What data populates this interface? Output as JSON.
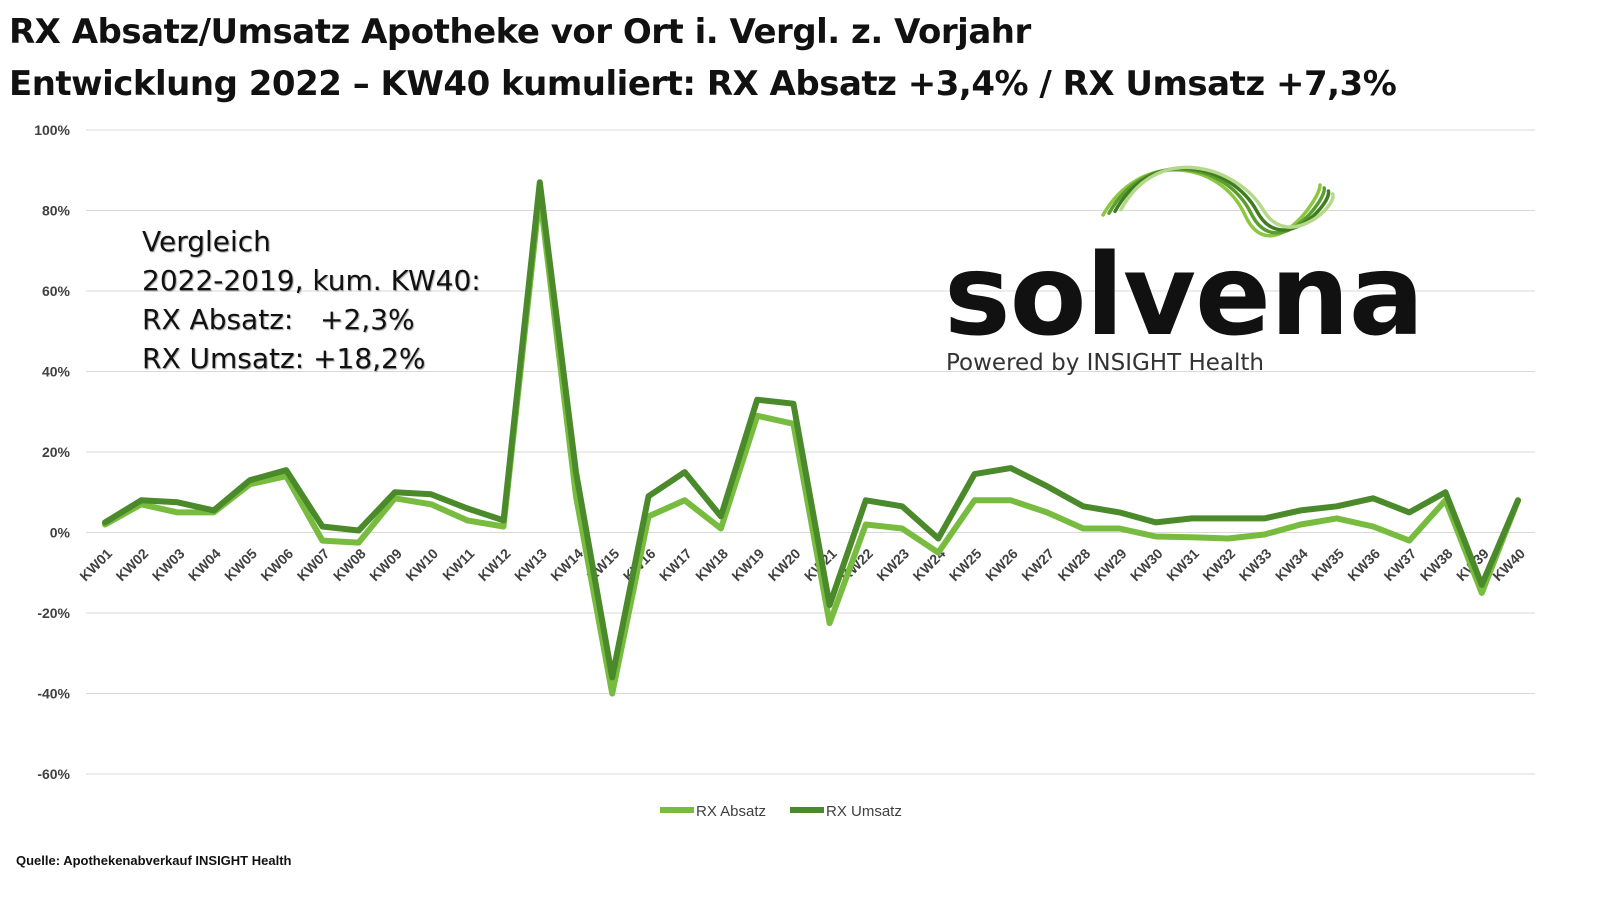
{
  "header": {
    "title_line1": "RX Absatz/Umsatz Apotheke vor Ort i. Vergl. z. Vorjahr",
    "title_line2": "Entwicklung 2022 – KW40 kumuliert: RX Absatz +3,4% / RX Umsatz +7,3%"
  },
  "note": {
    "line1": "Vergleich",
    "line2": "2022-2019, kum. KW40:",
    "line3": "RX Absatz:   +2,3%",
    "line4": "RX Umsatz: +18,2%"
  },
  "logo": {
    "wordmark": "solvena",
    "tagline": "Powered by INSIGHT Health",
    "colors": [
      "#8dc63f",
      "#5a9e2f",
      "#3f7d20",
      "#b5d98a"
    ]
  },
  "source": "Quelle: Apothekenabverkauf INSIGHT Health",
  "chart_data": {
    "type": "line",
    "title": "",
    "xlabel": "",
    "ylabel": "",
    "ylim": [
      -0.6,
      1.0
    ],
    "yticks": [
      -0.6,
      -0.4,
      -0.2,
      0,
      0.2,
      0.4,
      0.6,
      0.8,
      1.0
    ],
    "ytick_labels": [
      "-60%",
      "-40%",
      "-20%",
      "0%",
      "20%",
      "40%",
      "60%",
      "80%",
      "100%"
    ],
    "grid": true,
    "legend_position": "bottom",
    "categories": [
      "KW01",
      "KW02",
      "KW03",
      "KW04",
      "KW05",
      "KW06",
      "KW07",
      "KW08",
      "KW09",
      "KW10",
      "KW11",
      "KW12",
      "KW13",
      "KW14",
      "KW15",
      "KW16",
      "KW17",
      "KW18",
      "KW19",
      "KW20",
      "KW21",
      "KW22",
      "KW23",
      "KW24",
      "KW25",
      "KW26",
      "KW27",
      "KW28",
      "KW29",
      "KW30",
      "KW31",
      "KW32",
      "KW33",
      "KW34",
      "KW35",
      "KW36",
      "KW37",
      "KW38",
      "KW39",
      "KW40"
    ],
    "series": [
      {
        "name": "RX Absatz",
        "color": "#77bc3f",
        "values": [
          0.02,
          0.07,
          0.05,
          0.05,
          0.12,
          0.14,
          -0.02,
          -0.025,
          0.085,
          0.07,
          0.03,
          0.015,
          0.84,
          0.09,
          -0.4,
          0.04,
          0.08,
          0.01,
          0.29,
          0.27,
          -0.225,
          0.02,
          0.01,
          -0.05,
          0.08,
          0.08,
          0.05,
          0.01,
          0.01,
          -0.01,
          -0.012,
          -0.015,
          -0.005,
          0.02,
          0.035,
          0.015,
          -0.02,
          0.08,
          -0.15,
          0.08
        ]
      },
      {
        "name": "RX Umsatz",
        "color": "#4a8a2a",
        "values": [
          0.025,
          0.08,
          0.075,
          0.055,
          0.13,
          0.155,
          0.015,
          0.005,
          0.1,
          0.095,
          0.06,
          0.03,
          0.87,
          0.15,
          -0.36,
          0.09,
          0.15,
          0.04,
          0.33,
          0.32,
          -0.18,
          0.08,
          0.065,
          -0.015,
          0.145,
          0.16,
          0.115,
          0.065,
          0.05,
          0.025,
          0.035,
          0.035,
          0.035,
          0.055,
          0.065,
          0.085,
          0.05,
          0.1,
          -0.13,
          0.08
        ]
      }
    ]
  }
}
